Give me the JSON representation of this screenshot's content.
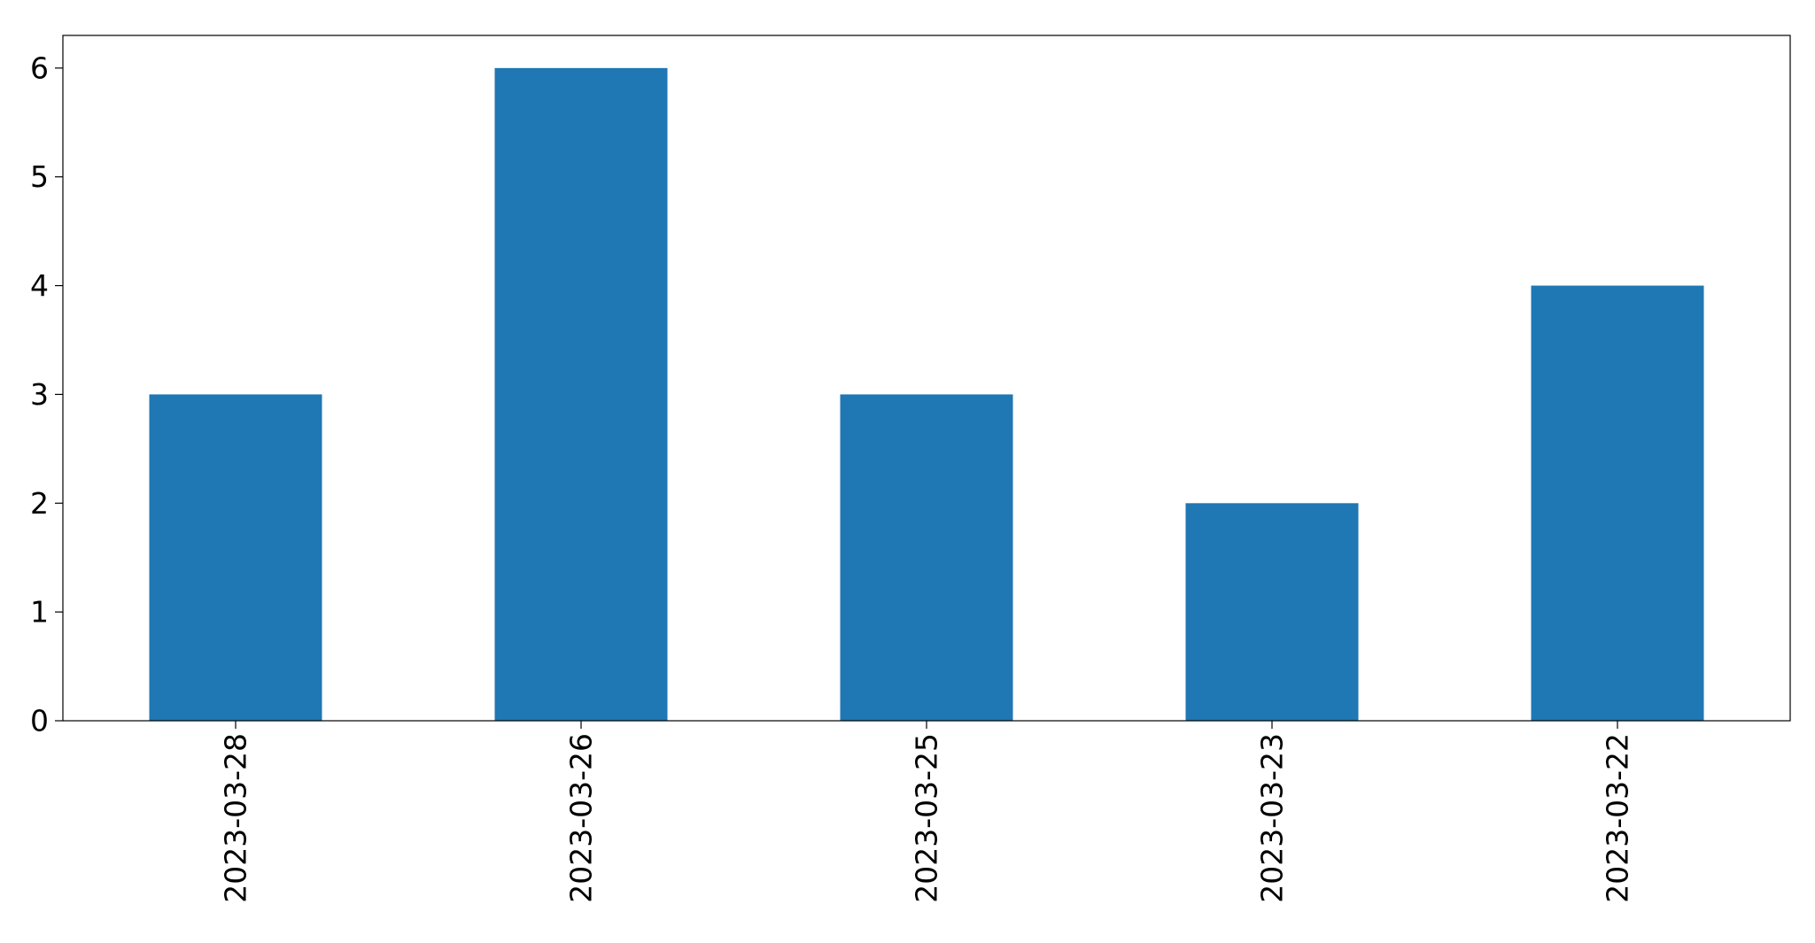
{
  "chart_data": {
    "type": "bar",
    "title": "",
    "xlabel": "",
    "ylabel": "",
    "categories": [
      "2023-03-28",
      "2023-03-26",
      "2023-03-25",
      "2023-03-23",
      "2023-03-22"
    ],
    "series": [
      {
        "values": [
          3,
          6,
          3,
          2,
          4
        ],
        "color": "#1f77b4"
      }
    ],
    "ylim": [
      0,
      6.3
    ],
    "yticks": [
      0,
      1,
      2,
      3,
      4,
      5,
      6
    ],
    "grid": false,
    "legend": "none",
    "x_tick_label_rotation": "vertical"
  }
}
